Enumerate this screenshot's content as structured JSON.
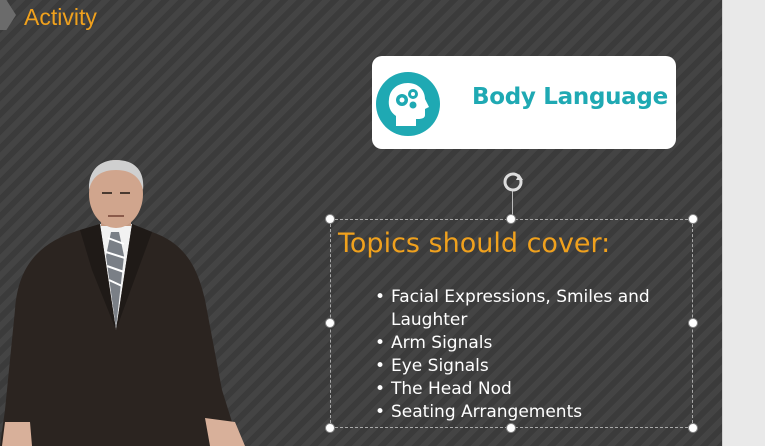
{
  "slide": {
    "title": "Activity",
    "card": {
      "label": "Body Language",
      "icon": "head-gears-icon"
    },
    "textbox": {
      "heading": "Topics should cover:",
      "bullet": "•",
      "topics": [
        "Facial Expressions, Smiles and Laughter",
        "Arm Signals",
        "Eye Signals",
        "The Head Nod",
        "Seating Arrangements"
      ]
    },
    "image": {
      "subject": "businessman-photo"
    }
  },
  "colors": {
    "accent_orange": "#f0a11d",
    "teal": "#1fa9b3",
    "background": "#3d3d3d"
  }
}
